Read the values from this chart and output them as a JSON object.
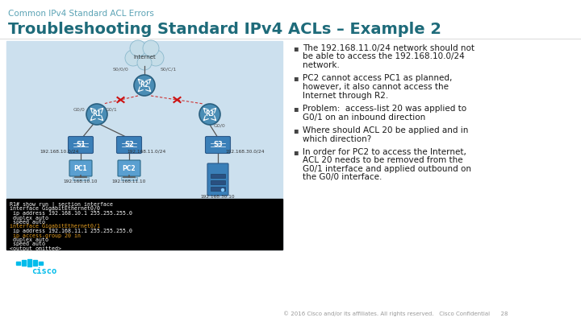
{
  "bg_color": "#ffffff",
  "subtitle_text": "Common IPv4 Standard ACL Errors",
  "title_text": "Troubleshooting Standard IPv4 ACLs – Example 2",
  "subtitle_color": "#5ba3b5",
  "title_color": "#1e6b7a",
  "left_panel_bg": "#cce0ee",
  "terminal_bg": "#000000",
  "terminal_lines": [
    {
      "text": "R1# show run | section interface",
      "color": "#ffffff"
    },
    {
      "text": "interface GigabitEthernet0/0",
      "color": "#ffffff"
    },
    {
      "text": " ip address 192.168.10.1 255.255.255.0",
      "color": "#ffffff"
    },
    {
      "text": " duplex auto",
      "color": "#ffffff"
    },
    {
      "text": " speed auto",
      "color": "#ffffff"
    },
    {
      "text": "interface GigabitEthernet0/1",
      "color": "#e8a020"
    },
    {
      "text": " ip address 192.168.11.1 255.255.255.0",
      "color": "#ffffff"
    },
    {
      "text": " ip access-group 20 in",
      "color": "#e8a020"
    },
    {
      "text": " duplex auto",
      "color": "#ffffff"
    },
    {
      "text": " speed auto",
      "color": "#ffffff"
    },
    {
      "text": "<output omitted>",
      "color": "#ffffff"
    }
  ],
  "bullets": [
    "The 192.168.11.0/24 network should not\nbe able to access the 192.168.10.0/24\nnetwork.",
    "PC2 cannot access PC1 as planned,\nhowever, it also cannot access the\nInternet through R2.",
    "Problem:  access-list 20 was applied to\nG0/1 on an inbound direction",
    "Where should ACL 20 be applied and in\nwhich direction?",
    "In order for PC2 to access the Internet,\nACL 20 needs to be removed from the\nG0/1 interface and applied outbound on\nthe G0/0 interface."
  ],
  "bullet_color": "#1a1a1a",
  "bullet_marker_color": "#444444",
  "footer_text": "© 2016 Cisco and/or its affiliates. All rights reserved.   Cisco Confidential      28",
  "footer_color": "#999999",
  "cisco_logo_color": "#00bceb",
  "router_color": "#4a8db5",
  "router_edge": "#2a6080",
  "switch_color": "#3a7fb8",
  "pc_color": "#5a9fd0",
  "cloud_color": "#c5dde8",
  "cloud_edge": "#8ab8cc",
  "line_color": "#555555",
  "red_mark_color": "#cc2222",
  "net_label_color": "#333333",
  "ip_label_color": "#333333",
  "iface_label_color": "#555555"
}
